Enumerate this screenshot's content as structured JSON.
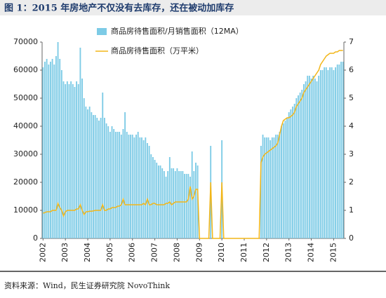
{
  "chart_data": {
    "type": "bar_line",
    "title": "图 1：2015 年房地产不仅没有去库存，还在被动加库存",
    "source": "资料来源：Wind，民生证券研究院 NovoThink",
    "categories": [
      "2002",
      null,
      null,
      null,
      null,
      null,
      null,
      null,
      null,
      null,
      null,
      null,
      "2003",
      null,
      null,
      null,
      null,
      null,
      null,
      null,
      null,
      null,
      null,
      null,
      "2004",
      null,
      null,
      null,
      null,
      null,
      null,
      null,
      null,
      null,
      null,
      null,
      "2005",
      null,
      null,
      null,
      null,
      null,
      null,
      null,
      null,
      null,
      null,
      null,
      "2006",
      null,
      null,
      null,
      null,
      null,
      null,
      null,
      null,
      null,
      null,
      null,
      "2007",
      null,
      null,
      null,
      null,
      null,
      null,
      null,
      null,
      null,
      null,
      null,
      "2008",
      null,
      null,
      null,
      null,
      null,
      null,
      null,
      null,
      null,
      null,
      null,
      "2009",
      null,
      null,
      null,
      null,
      null,
      null,
      null,
      null,
      null,
      null,
      null,
      "2010",
      null,
      null,
      null,
      null,
      null,
      null,
      null,
      null,
      null,
      null,
      null,
      "2011",
      null,
      null,
      null,
      null,
      null,
      null,
      null,
      null,
      null,
      null,
      null,
      "2012",
      null,
      null,
      null,
      null,
      null,
      null,
      null,
      null,
      null,
      null,
      null,
      "2013",
      null,
      null,
      null,
      null,
      null,
      null,
      null,
      null,
      null,
      null,
      null,
      "2014",
      null,
      null,
      null,
      null,
      null,
      null,
      null,
      null,
      null,
      null,
      null,
      "2015",
      null,
      null,
      null,
      null,
      null
    ],
    "series": [
      {
        "name": "商品房待售面积/月销售面积（12MA）",
        "color": "#7dcbe6",
        "kind": "bar",
        "values": [
          61000,
          63000,
          64000,
          62000,
          63000,
          64000,
          62000,
          65000,
          70000,
          64000,
          60000,
          56000,
          55000,
          56000,
          55000,
          56000,
          55000,
          54000,
          56000,
          55000,
          68000,
          57000,
          50000,
          47000,
          46000,
          47000,
          45000,
          44000,
          44000,
          43000,
          42000,
          43000,
          52000,
          43000,
          41000,
          40000,
          38000,
          40000,
          39000,
          38000,
          38000,
          38000,
          37000,
          39000,
          45000,
          38000,
          37000,
          37000,
          37000,
          36000,
          37000,
          38000,
          36000,
          36000,
          35000,
          36000,
          34000,
          33000,
          30000,
          29000,
          28000,
          27000,
          26000,
          26000,
          25000,
          24000,
          22000,
          24000,
          29000,
          25000,
          25000,
          24000,
          25000,
          24000,
          24000,
          24000,
          23000,
          23000,
          23000,
          22000,
          31000,
          24000,
          27000,
          26000,
          0,
          0,
          0,
          0,
          0,
          0,
          33000,
          0,
          0,
          0,
          0,
          0,
          35000,
          0,
          0,
          0,
          0,
          0,
          0,
          0,
          0,
          0,
          0,
          0,
          0,
          0,
          0,
          0,
          0,
          0,
          0,
          0,
          0,
          33000,
          37000,
          36000,
          36000,
          36000,
          35000,
          36000,
          36000,
          37000,
          37000,
          38000,
          40000,
          41000,
          42000,
          43000,
          45000,
          46000,
          47000,
          48000,
          50000,
          51000,
          52000,
          53000,
          55000,
          56000,
          58000,
          58000,
          57000,
          58000,
          57000,
          56000,
          58000,
          60000,
          60000,
          61000,
          61000,
          60000,
          61000,
          61000,
          60000,
          61000,
          62000,
          62000,
          63000,
          63000
        ]
      },
      {
        "name": "商品房待售面积（万平米）",
        "color": "#f2b619",
        "kind": "line",
        "axis": "y2",
        "values": [
          0.9,
          0.92,
          0.95,
          0.95,
          0.95,
          1.0,
          1.0,
          1.0,
          1.25,
          1.1,
          1.0,
          0.8,
          0.95,
          1.0,
          1.0,
          1.0,
          1.0,
          1.0,
          1.05,
          1.05,
          1.2,
          1.0,
          0.85,
          0.95,
          0.95,
          0.97,
          0.97,
          0.98,
          1.0,
          1.0,
          1.0,
          1.0,
          1.2,
          1.0,
          1.0,
          1.05,
          1.05,
          1.1,
          1.1,
          1.1,
          1.15,
          1.15,
          1.2,
          1.4,
          1.2,
          1.2,
          1.2,
          1.2,
          1.2,
          1.2,
          1.2,
          1.2,
          1.2,
          1.2,
          1.25,
          1.2,
          1.4,
          1.2,
          1.2,
          1.25,
          1.25,
          1.2,
          1.2,
          1.2,
          1.2,
          1.2,
          1.25,
          1.25,
          1.3,
          1.2,
          1.25,
          1.3,
          1.3,
          1.3,
          1.3,
          1.3,
          1.3,
          1.3,
          1.4,
          1.85,
          1.4,
          1.5,
          1.75,
          1.75,
          0,
          0,
          0,
          0,
          0,
          0,
          2,
          0,
          0,
          0,
          0,
          0,
          2,
          0,
          0,
          0,
          0,
          0,
          0,
          0,
          0,
          0,
          0,
          0,
          0,
          0,
          0,
          0,
          0,
          0,
          0,
          0,
          0,
          2.7,
          2.9,
          3.0,
          3.05,
          3.1,
          3.15,
          3.2,
          3.25,
          3.3,
          3.4,
          3.7,
          4.0,
          4.2,
          4.25,
          4.3,
          4.3,
          4.35,
          4.4,
          4.5,
          4.7,
          4.8,
          4.9,
          5.0,
          5.2,
          5.3,
          5.4,
          5.5,
          5.6,
          5.7,
          5.8,
          5.9,
          6.0,
          6.2,
          6.3,
          6.4,
          6.5,
          6.55,
          6.6,
          6.6,
          6.6,
          6.65,
          6.65,
          6.7,
          6.7,
          6.7
        ]
      }
    ],
    "ylim": [
      0,
      70000
    ],
    "yticks": [
      0,
      10000,
      20000,
      30000,
      40000,
      50000,
      60000,
      70000
    ],
    "y2lim": [
      0,
      7
    ],
    "y2ticks": [
      0,
      1,
      2,
      3,
      4,
      5,
      6,
      7
    ]
  }
}
